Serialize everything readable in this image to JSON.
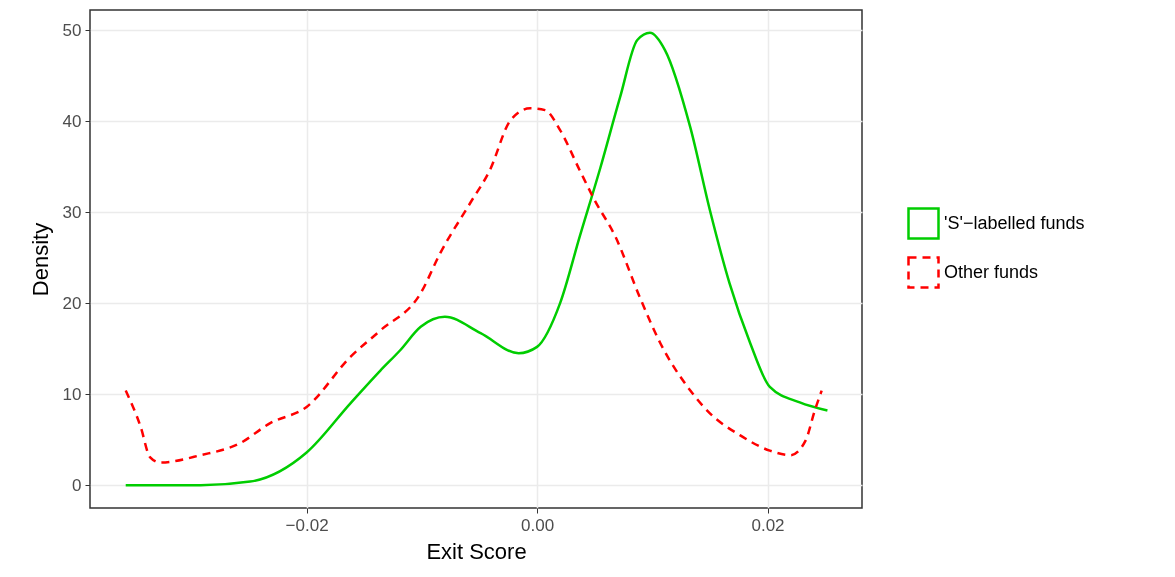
{
  "chart_data": {
    "type": "line",
    "xlabel": "Exit Score",
    "ylabel": "Density",
    "xlim": [
      -0.0388,
      0.0282
    ],
    "ylim": [
      -2.5,
      52.2
    ],
    "xticks": [
      {
        "value": -0.02,
        "label": "−0.02"
      },
      {
        "value": 0,
        "label": "0.00"
      },
      {
        "value": 0.02,
        "label": "0.02"
      }
    ],
    "yticks": [
      0,
      10,
      20,
      30,
      40,
      50
    ],
    "grid": true,
    "legend": "right",
    "series": [
      {
        "name": "'S'−labelled funds",
        "color": "#00cd00",
        "line_style": "solid",
        "x": [
          -0.0357,
          -0.0292,
          -0.0249,
          -0.02,
          -0.0162,
          -0.0136,
          -0.0119,
          -0.0101,
          -0.008,
          -0.0049,
          -0.0016,
          0,
          0.002,
          0.0037,
          0.0055,
          0.0072,
          0.0087,
          0.0098,
          0.0111,
          0.0133,
          0.015,
          0.0167,
          0.0185,
          0.0202,
          0.0228,
          0.0252
        ],
        "values": [
          0,
          0,
          0.4,
          3.6,
          9,
          12.6,
          14.8,
          17.4,
          18.5,
          16.7,
          14.5,
          15.2,
          20,
          27.3,
          34.9,
          42.6,
          48.9,
          49.7,
          47.8,
          39.3,
          30.2,
          22.2,
          15.6,
          10.8,
          9.1,
          8.2
        ]
      },
      {
        "name": "Other funds",
        "color": "#ff0000",
        "line_style": "dashed",
        "x": [
          -0.0357,
          -0.0344,
          -0.0336,
          -0.0327,
          -0.0292,
          -0.0258,
          -0.0232,
          -0.02,
          -0.0162,
          -0.0136,
          -0.0101,
          -0.0084,
          -0.0058,
          -0.0041,
          -0.0023,
          -0.0006,
          0.0007,
          0.002,
          0.0037,
          0.005,
          0.0068,
          0.0089,
          0.0107,
          0.0133,
          0.015,
          0.0176,
          0.0202,
          0.022,
          0.0233,
          0.0241,
          0.0247
        ],
        "values": [
          10.4,
          6.4,
          3.1,
          2.5,
          3.3,
          4.6,
          6.8,
          8.6,
          14.1,
          17,
          21.1,
          25.5,
          31,
          34.6,
          40.1,
          41.4,
          41.2,
          39,
          34.6,
          31.3,
          27.3,
          20.7,
          15.6,
          10.4,
          7.9,
          5.5,
          3.8,
          3.3,
          4.9,
          8.2,
          10.4
        ]
      }
    ]
  }
}
